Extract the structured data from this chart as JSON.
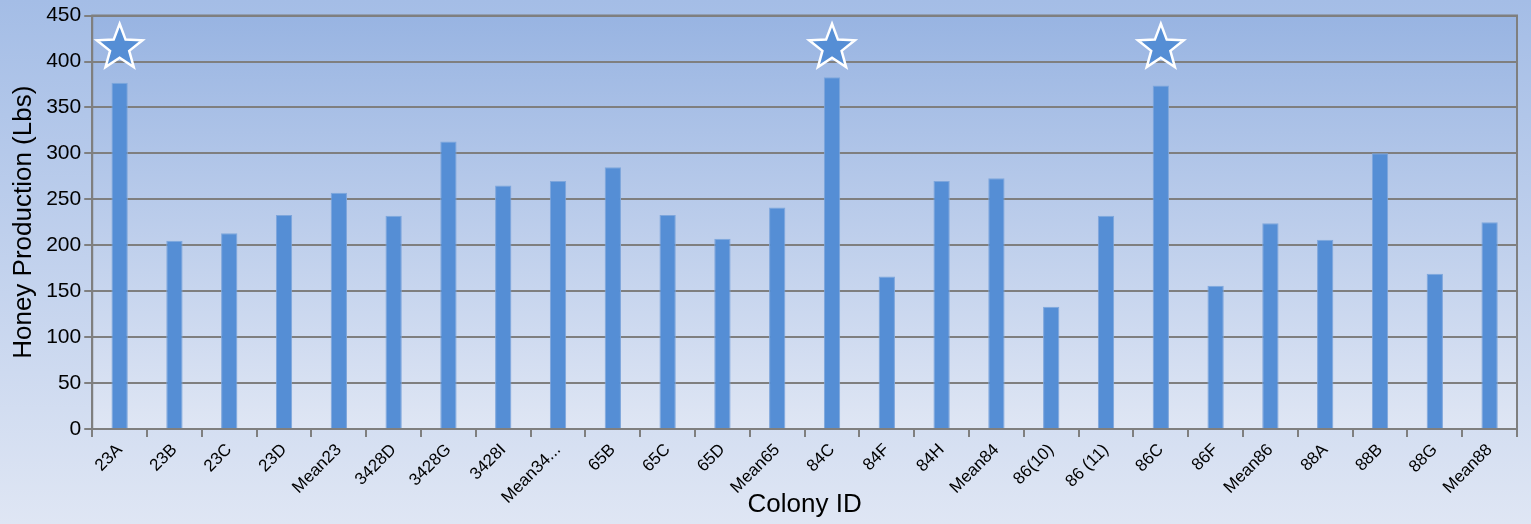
{
  "chart_data": {
    "type": "bar",
    "xlabel": "Colony ID",
    "ylabel": "Honey Production (Lbs)",
    "categories": [
      "23A",
      "23B",
      "23C",
      "23D",
      "Mean23",
      "3428D",
      "3428G",
      "3428I",
      "Mean34...",
      "65B",
      "65C",
      "65D",
      "Mean65",
      "84C",
      "84F",
      "84H",
      "Mean84",
      "86(10)",
      "86 (11)",
      "86C",
      "86F",
      "Mean86",
      "88A",
      "88B",
      "88G",
      "Mean88"
    ],
    "series": [
      {
        "color": "#558ed5",
        "values": [
          377,
          205,
          213,
          233,
          257,
          232,
          313,
          265,
          270,
          285,
          233,
          207,
          241,
          383,
          166,
          270,
          273,
          133,
          232,
          374,
          156,
          224,
          206,
          300,
          169,
          225
        ]
      },
      {
        "type": "scatter",
        "color": "#558ed5",
        "marker": "star",
        "x": [
          "23A",
          "84C",
          "86C"
        ],
        "values": [
          415,
          415,
          415
        ]
      }
    ],
    "ylim": [
      0,
      450
    ],
    "yticks": [
      0,
      50,
      100,
      150,
      200,
      250,
      300,
      350,
      400,
      450
    ],
    "grid": "y",
    "legend": false
  }
}
